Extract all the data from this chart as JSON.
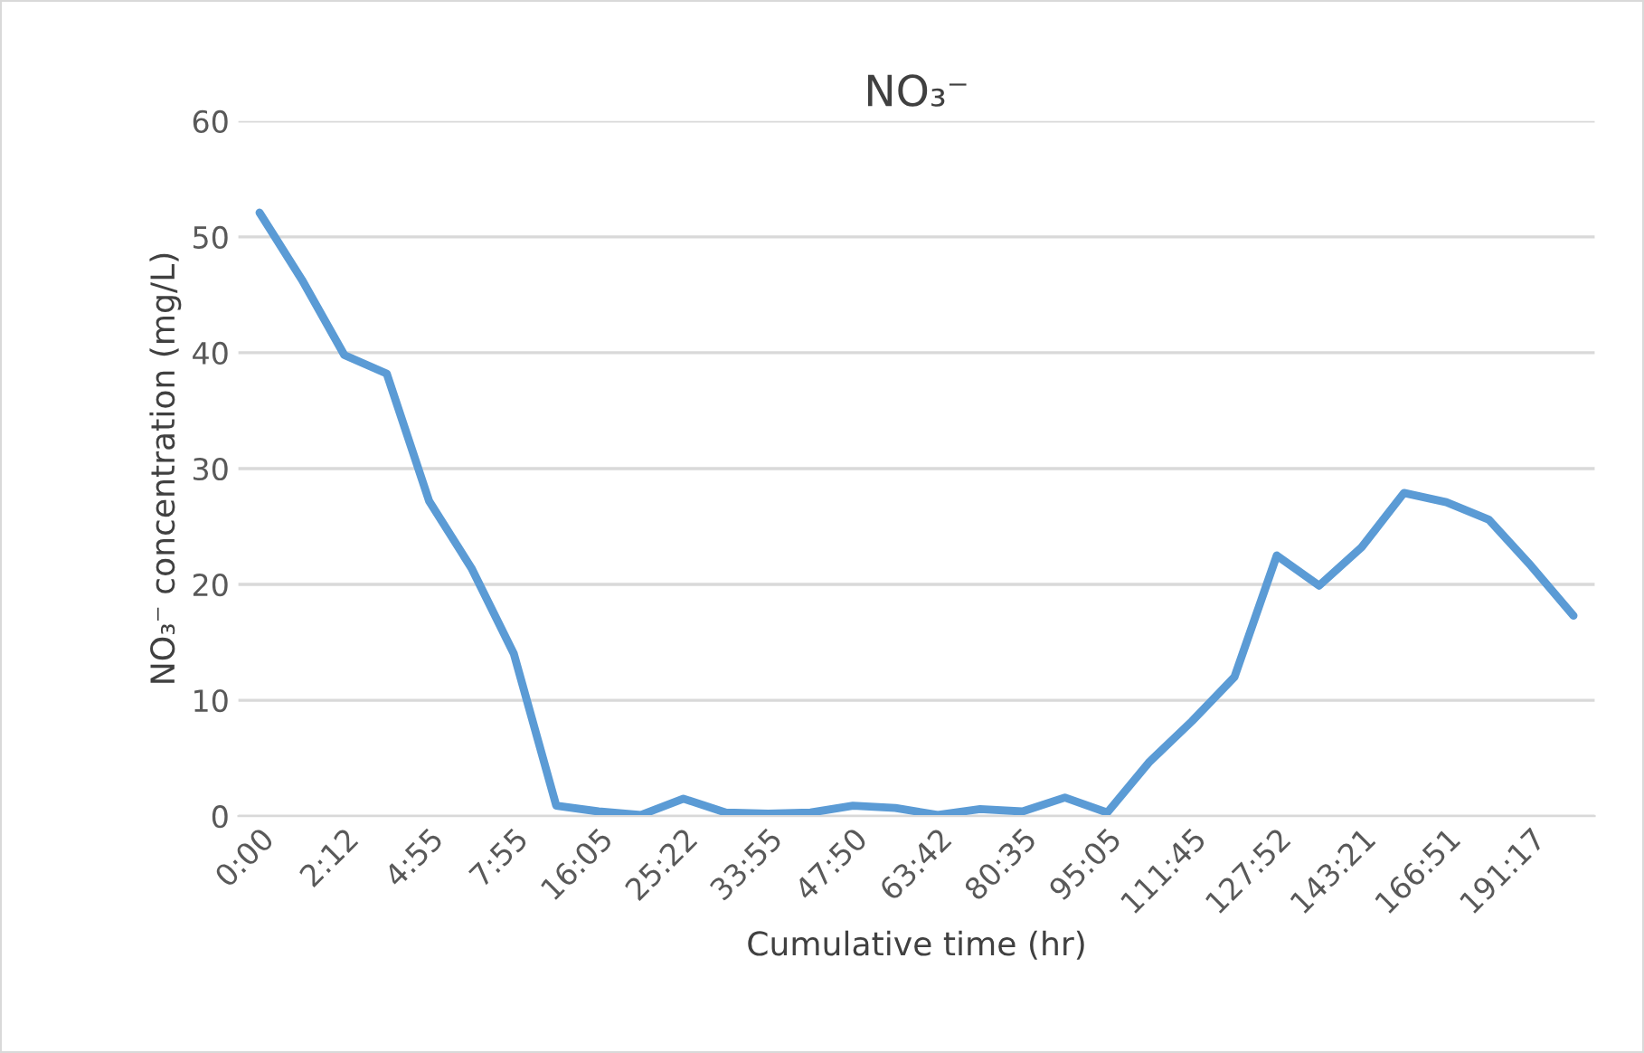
{
  "chart_data": {
    "type": "line",
    "title": "NO₃⁻",
    "xlabel": "Cumulative time (hr)",
    "ylabel": "NO₃⁻ concentration (mg/L)",
    "categories": [
      "0:00",
      null,
      "2:12",
      null,
      "4:55",
      null,
      "7:55",
      null,
      "16:05",
      null,
      "25:22",
      null,
      "33:55",
      null,
      "47:50",
      null,
      "63:42",
      null,
      "80:35",
      null,
      "95:05",
      null,
      "111:45",
      null,
      "127:52",
      null,
      "143:21",
      null,
      "166:51",
      null,
      "191:17",
      null
    ],
    "series": [
      {
        "color": "#5b9bd5",
        "values": [
          52.1,
          46.3,
          39.8,
          38.2,
          27.2,
          21.4,
          14.0,
          0.9,
          0.4,
          0.1,
          1.5,
          0.3,
          0.2,
          0.3,
          0.9,
          0.7,
          0.1,
          0.6,
          0.4,
          1.6,
          0.3,
          4.7,
          8.2,
          12.0,
          22.5,
          19.9,
          23.2,
          27.9,
          27.1,
          25.6,
          21.6,
          17.3
        ]
      }
    ],
    "ylim": [
      0,
      60
    ],
    "yticks": [
      0,
      10,
      20,
      30,
      40,
      50,
      60
    ],
    "grid": "y",
    "marker": "none",
    "line_style": "solid",
    "legend": false
  }
}
